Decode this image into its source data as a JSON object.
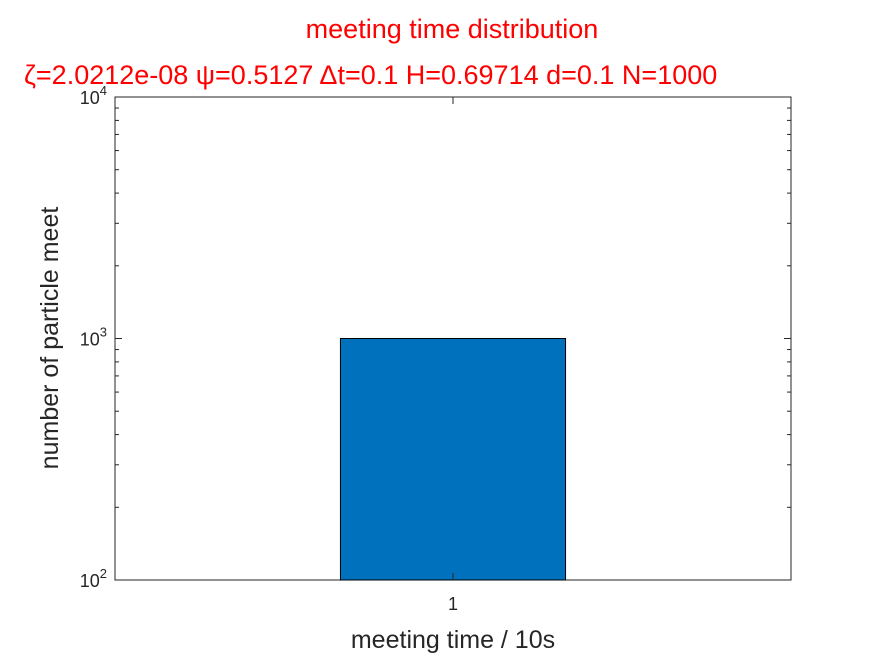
{
  "chart_data": {
    "type": "bar",
    "title": "meeting time distribution",
    "subtitle": "ζ=2.0212e-08 ψ=0.5127 Δt=0.1 H=0.69714 d=0.1 N=1000",
    "xlabel": "meeting time / 10s",
    "ylabel": "number of particle meet",
    "categories": [
      "1"
    ],
    "values": [
      1000
    ],
    "yscale": "log",
    "ylim": [
      100,
      10000
    ],
    "y_tick_labels": [
      {
        "base": "10",
        "exp": "2",
        "value": 100
      },
      {
        "base": "10",
        "exp": "3",
        "value": 1000
      },
      {
        "base": "10",
        "exp": "4",
        "value": 10000
      }
    ],
    "grid": false,
    "legend": "none",
    "colors": {
      "bar": "#0072BD",
      "title": "#FF0000",
      "axis": "#262626"
    }
  }
}
